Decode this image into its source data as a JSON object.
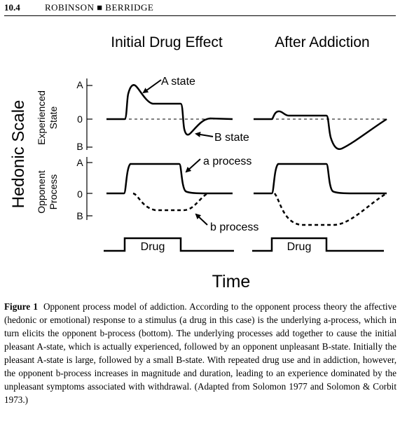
{
  "header": {
    "page_number": "10.4",
    "authors": "ROBINSON ■ BERRIDGE"
  },
  "figure": {
    "panel_titles": {
      "left": "Initial Drug Effect",
      "right": "After Addiction"
    },
    "y_axis_title": "Hedonic Scale",
    "rows": {
      "top": {
        "label_line1": "Experienced",
        "label_line2": "State"
      },
      "bottom": {
        "label_line1": "Opponent",
        "label_line2": "Process"
      }
    },
    "ticks": {
      "a": "A",
      "zero": "0",
      "b": "B"
    },
    "annotations": {
      "a_state": "A state",
      "b_state": "B state",
      "a_process": "a process",
      "b_process": "b process"
    },
    "drug_label": "Drug",
    "x_axis_title": "Time"
  },
  "caption": {
    "label": "Figure 1",
    "text": "Opponent process model of addiction. According to the opponent process theory the affective (hedonic or emotional) response to a stimulus (a drug in this case) is the underlying a-process, which in turn elicits the opponent b-process (bottom). The underlying processes add together to cause the initial pleasant A-state, which is actually experienced, followed by an opponent unpleasant B-state. Initially the pleasant A-state is large, followed by a small B-state. With repeated drug use and in addiction, however, the opponent b-process increases in magnitude and duration, leading to an experience dominated by the unpleasant symptoms associated with withdrawal. (Adapted from Solomon 1977 and Solomon & Corbit 1973.)"
  }
}
